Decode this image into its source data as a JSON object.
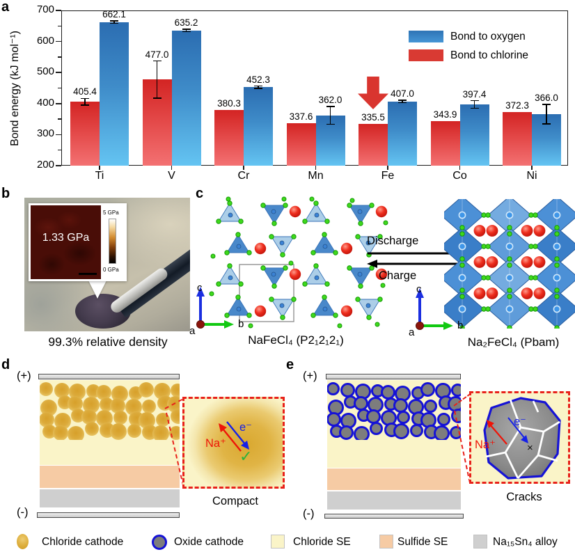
{
  "panel_labels": {
    "a": "a",
    "b": "b",
    "c": "c",
    "d": "d",
    "e": "e"
  },
  "chart_data": {
    "type": "bar",
    "categories": [
      "Ti",
      "V",
      "Cr",
      "Mn",
      "Fe",
      "Co",
      "Ni"
    ],
    "series": [
      {
        "name": "Bond to oxygen",
        "color": "#3a7fbf",
        "values": [
          662.1,
          635.2,
          452.3,
          362.0,
          407.0,
          397.4,
          366.0
        ],
        "errors": [
          4,
          4,
          4,
          29,
          4,
          12,
          31
        ]
      },
      {
        "name": "Bond to chlorine",
        "color": "#d93a33",
        "values": [
          405.4,
          477.0,
          380.3,
          337.6,
          335.5,
          343.9,
          372.3
        ],
        "errors": [
          11,
          60,
          0,
          0,
          0,
          0,
          0
        ]
      }
    ],
    "title": "",
    "xlabel": "",
    "ylabel": "Bond energy (kJ mol⁻¹)",
    "ylim": [
      200,
      700
    ],
    "yticks": [
      200,
      300,
      400,
      500,
      600,
      700
    ],
    "minor_yticks": [
      250,
      350,
      450,
      550,
      650
    ],
    "grid": false,
    "legend_position": "top-right",
    "annotation": {
      "type": "down-arrow",
      "target_category": "Fe",
      "target_series": "Bond to chlorine",
      "color": "#d9352f"
    }
  },
  "panel_b": {
    "inset_value": "1.33 GPa",
    "colorbar_max": "5 GPa",
    "colorbar_min": "0 GPa",
    "caption": "99.3% relative density"
  },
  "panel_c": {
    "left_caption": "NaFeCl₄ (P2₁2₁2₁)",
    "right_caption": "Na₂FeCl₄ (Pbam)",
    "discharge_label": "Discharge",
    "charge_label": "Charge",
    "axis": {
      "a": "a",
      "b": "b",
      "c": "c"
    }
  },
  "panel_d": {
    "positive": "(+)",
    "negative": "(-)",
    "na_label": "Na⁺",
    "e_label": "e⁻",
    "check_glyph": "✓",
    "caption": "Compact"
  },
  "panel_e": {
    "positive": "(+)",
    "negative": "(-)",
    "na_label": "Na⁺",
    "e_label": "e⁻",
    "cross_glyph": "×",
    "caption": "Cracks"
  },
  "legend": {
    "items": [
      {
        "label": "Chloride cathode",
        "swatch": "gold-sphere",
        "color": "#d9a62e"
      },
      {
        "label": "Oxide cathode",
        "swatch": "oxide-sphere",
        "color": "#7d7d7d",
        "border": "#1512d6"
      },
      {
        "label": "Chloride SE",
        "swatch": "square",
        "color": "#faf4c8"
      },
      {
        "label": "Sulfide SE",
        "swatch": "square",
        "color": "#f6cba4"
      },
      {
        "label": "Na₁₅Sn₄ alloy",
        "swatch": "square",
        "color": "#cfcfcf"
      }
    ]
  },
  "colors": {
    "oxygen_bar_top": "#2b6db1",
    "oxygen_bar_bottom": "#64c4f2",
    "chlorine_bar_top": "#d32423",
    "chlorine_bar_bottom": "#f37172",
    "annotation_arrow": "#d9352f",
    "inset_border_red": "#e8211a",
    "chloride_se": "#faf4c8",
    "sulfide_se": "#f6cba4",
    "alloy_grey": "#cfcfcf",
    "na_ion_red": "#ee1408",
    "electron_blue": "#1520e8",
    "check_green": "#2cb23c"
  }
}
